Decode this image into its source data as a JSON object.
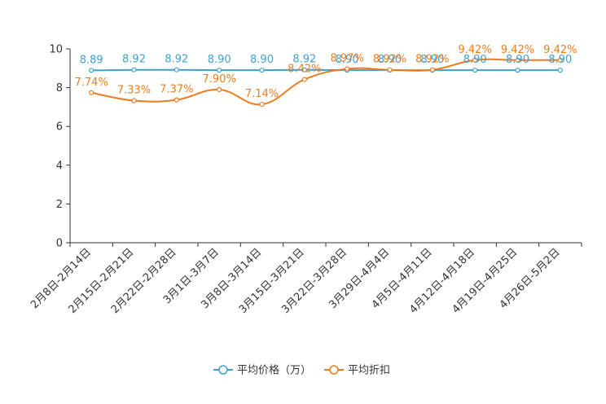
{
  "chart_data": {
    "type": "line",
    "title": "",
    "xlabel": "",
    "ylabel": "",
    "ylim": [
      0,
      10
    ],
    "yticks": [
      0,
      2,
      4,
      6,
      8,
      10
    ],
    "grid": false,
    "legend_position": "bottom-center",
    "categories": [
      "2月8日-2月14日",
      "2月15日-2月21日",
      "2月22日-2月28日",
      "3月1日-3月7日",
      "3月8日-3月14日",
      "3月15日-3月21日",
      "3月22日-3月28日",
      "3月29日-4月4日",
      "4月5日-4月11日",
      "4月12日-4月18日",
      "4月19日-4月25日",
      "4月26日-5月2日"
    ],
    "series": [
      {
        "name": "平均价格（万）",
        "color": "#3fa0d0",
        "values": [
          8.89,
          8.92,
          8.92,
          8.9,
          8.9,
          8.92,
          8.9,
          8.9,
          8.9,
          8.9,
          8.9,
          8.9
        ],
        "labels": [
          "8.89",
          "8.92",
          "8.92",
          "8.90",
          "8.90",
          "8.92",
          "8.90",
          "8.90",
          "8.90",
          "8.90",
          "8.90",
          "8.90"
        ]
      },
      {
        "name": "平均折扣",
        "color": "#f07b1b",
        "values": [
          7.74,
          7.33,
          7.37,
          7.9,
          7.14,
          8.42,
          8.97,
          8.92,
          8.92,
          9.42,
          9.42,
          9.42
        ],
        "labels": [
          "7.74%",
          "7.33%",
          "7.37%",
          "7.90%",
          "7.14%",
          "8.42%",
          "8.97%",
          "8.92%",
          "8.92%",
          "9.42%",
          "9.42%",
          "9.42%"
        ]
      }
    ]
  }
}
